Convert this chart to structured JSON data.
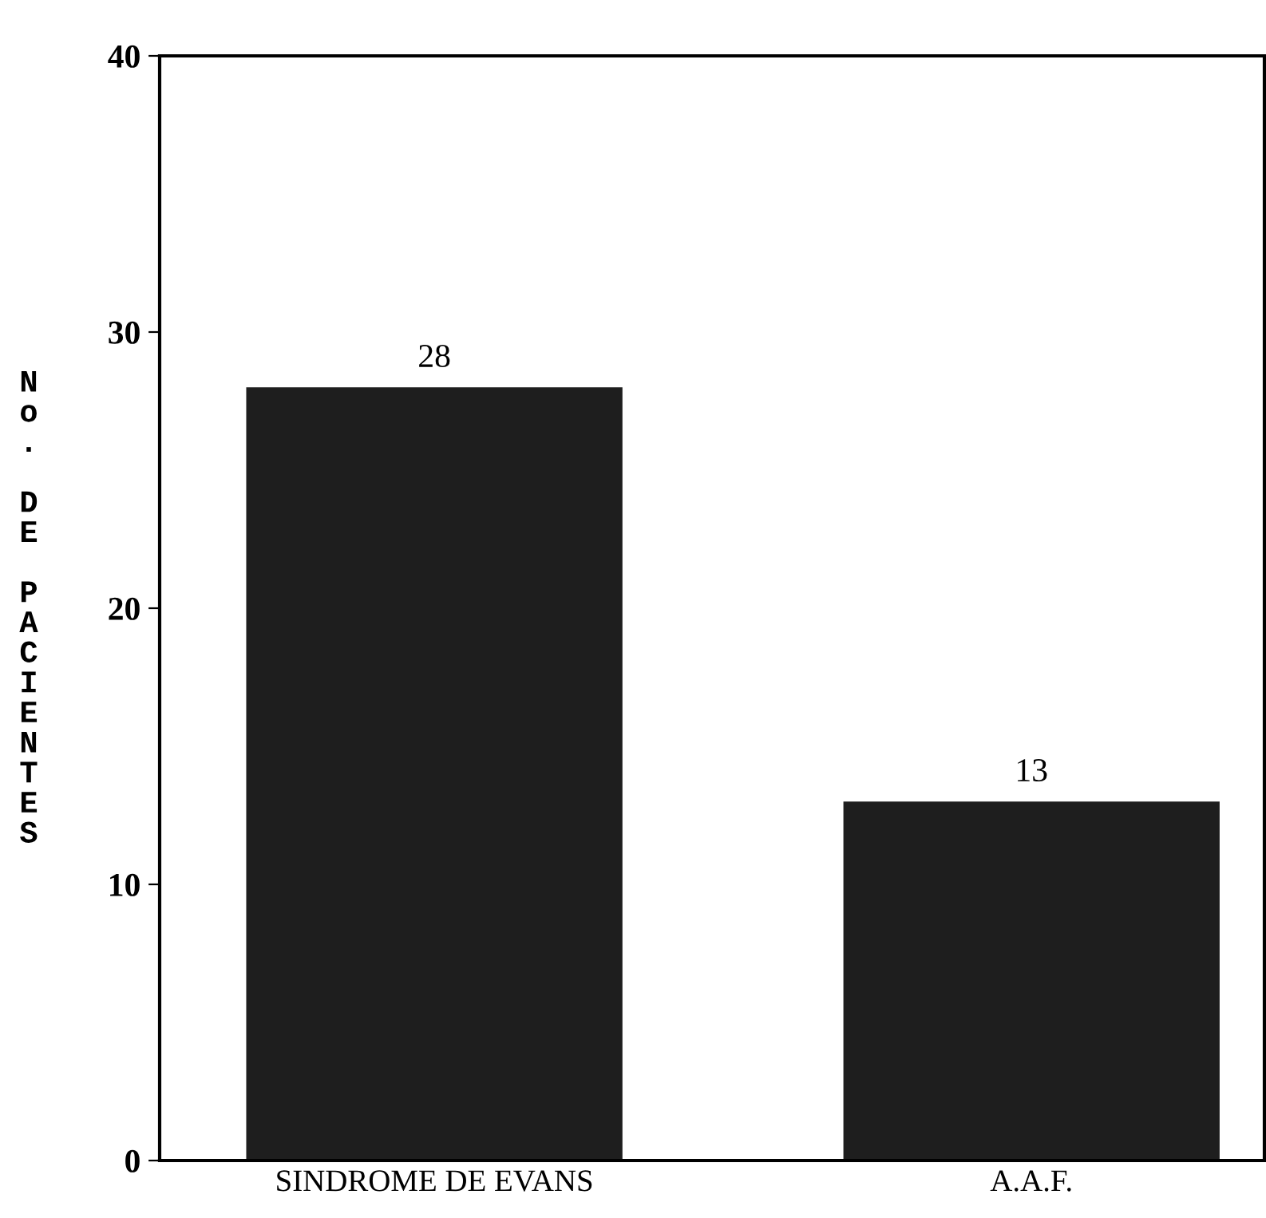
{
  "chart_data": {
    "type": "bar",
    "ylabel": "No. DE PACIENTES",
    "categories": [
      "SINDROME DE EVANS",
      "A.A.F."
    ],
    "values": [
      28,
      13
    ],
    "color": "#1e1e1e",
    "ylim": [
      0,
      40
    ],
    "yticks": [
      0,
      10,
      20,
      30,
      40
    ],
    "grid": false,
    "data_labels": true
  }
}
